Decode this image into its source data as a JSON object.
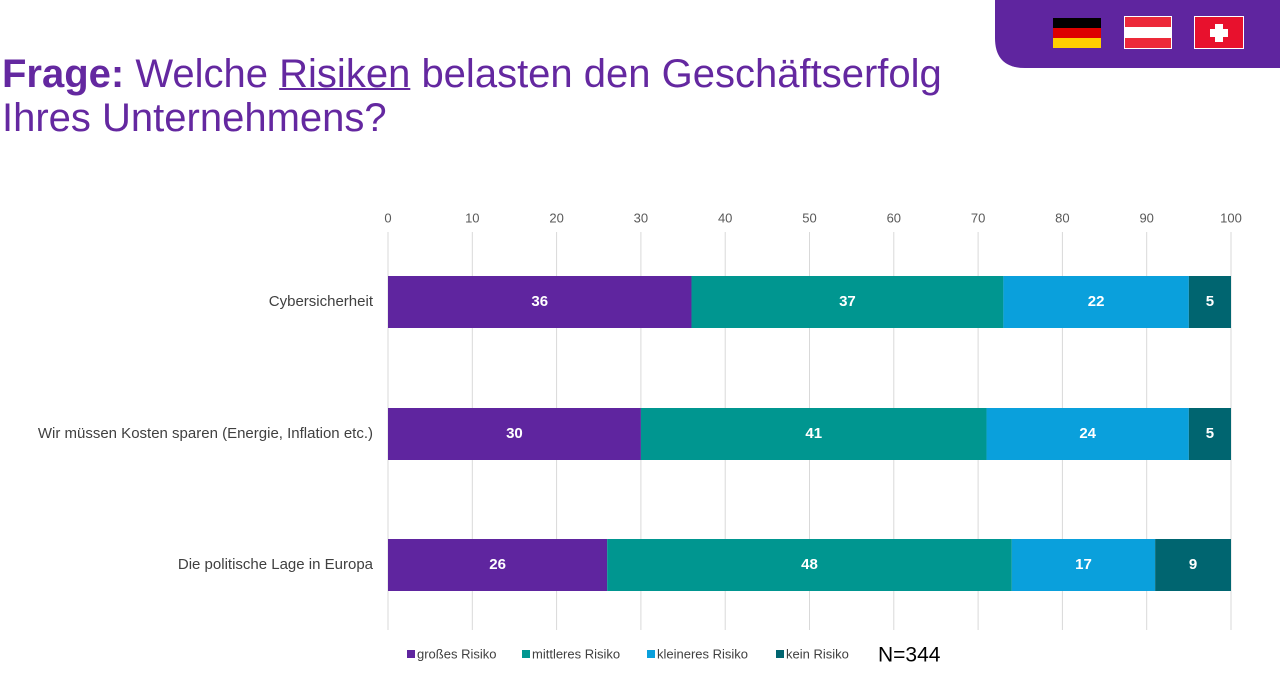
{
  "header": {
    "label": "Frage:",
    "title_parts": [
      "Welche",
      "Risiken",
      "belasten den Geschäftserfolg",
      "Ihres Unternehmens?"
    ]
  },
  "chart_data": {
    "type": "bar",
    "orientation": "horizontal",
    "stacked": true,
    "categories": [
      "Cybersicherheit",
      "Wir müssen Kosten sparen (Energie, Inflation etc.)",
      "Die politische Lage in Europa"
    ],
    "series": [
      {
        "name": "großes Risiko",
        "color": "#5f259f",
        "values": [
          36,
          30,
          26
        ]
      },
      {
        "name": "mittleres Risiko",
        "color": "#009690",
        "values": [
          37,
          41,
          48
        ]
      },
      {
        "name": "kleineres Risiko",
        "color": "#0aa0dc",
        "values": [
          22,
          24,
          17
        ]
      },
      {
        "name": "kein Risiko",
        "color": "#006570",
        "values": [
          5,
          5,
          9
        ]
      }
    ],
    "xlim": [
      0,
      100
    ],
    "xticks": [
      0,
      10,
      20,
      30,
      40,
      50,
      60,
      70,
      80,
      90,
      100
    ],
    "grid": true,
    "legend": "bottom",
    "note": "N=344"
  }
}
